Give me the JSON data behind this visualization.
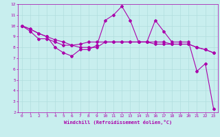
{
  "xlabel": "Windchill (Refroidissement éolien,°C)",
  "background_color": "#c8eeee",
  "grid_color": "#b0dddd",
  "line_color": "#aa00aa",
  "xlim": [
    -0.5,
    23.5
  ],
  "ylim": [
    2,
    12
  ],
  "xticks": [
    0,
    1,
    2,
    3,
    4,
    5,
    6,
    7,
    8,
    9,
    10,
    11,
    12,
    13,
    14,
    15,
    16,
    17,
    18,
    19,
    20,
    21,
    22,
    23
  ],
  "yticks": [
    2,
    3,
    4,
    5,
    6,
    7,
    8,
    9,
    10,
    11,
    12
  ],
  "series1_x": [
    0,
    1,
    2,
    3,
    4,
    5,
    6,
    7,
    8,
    9,
    10,
    11,
    12,
    13,
    14,
    15,
    16,
    17,
    18,
    19,
    20,
    21,
    22,
    23
  ],
  "series1_y": [
    10.0,
    9.7,
    9.3,
    9.0,
    8.0,
    7.5,
    7.2,
    7.8,
    7.8,
    8.2,
    10.5,
    11.0,
    11.8,
    10.5,
    8.5,
    8.5,
    10.5,
    9.5,
    8.5,
    8.5,
    8.5,
    5.8,
    6.5,
    2.3
  ],
  "series2_x": [
    0,
    1,
    2,
    3,
    4,
    5,
    6,
    7,
    8,
    9,
    10,
    11,
    12,
    13,
    14,
    15,
    16,
    17,
    18,
    19,
    20,
    21,
    22,
    23
  ],
  "series2_y": [
    10.0,
    9.7,
    9.3,
    9.0,
    8.7,
    8.5,
    8.2,
    8.0,
    8.0,
    8.0,
    8.5,
    8.5,
    8.5,
    8.5,
    8.5,
    8.5,
    8.5,
    8.5,
    8.3,
    8.3,
    8.3,
    8.0,
    7.8,
    7.5
  ],
  "series3_x": [
    0,
    1,
    2,
    3,
    4,
    5,
    6,
    7,
    8,
    9,
    10,
    11,
    12,
    13,
    14,
    15,
    16,
    17,
    18,
    19,
    20,
    21,
    22,
    23
  ],
  "series3_y": [
    10.0,
    9.5,
    8.8,
    8.8,
    8.5,
    8.2,
    8.2,
    8.3,
    8.5,
    8.5,
    8.5,
    8.5,
    8.5,
    8.5,
    8.5,
    8.5,
    8.3,
    8.3,
    8.3,
    8.3,
    8.3,
    8.0,
    7.8,
    7.5
  ]
}
